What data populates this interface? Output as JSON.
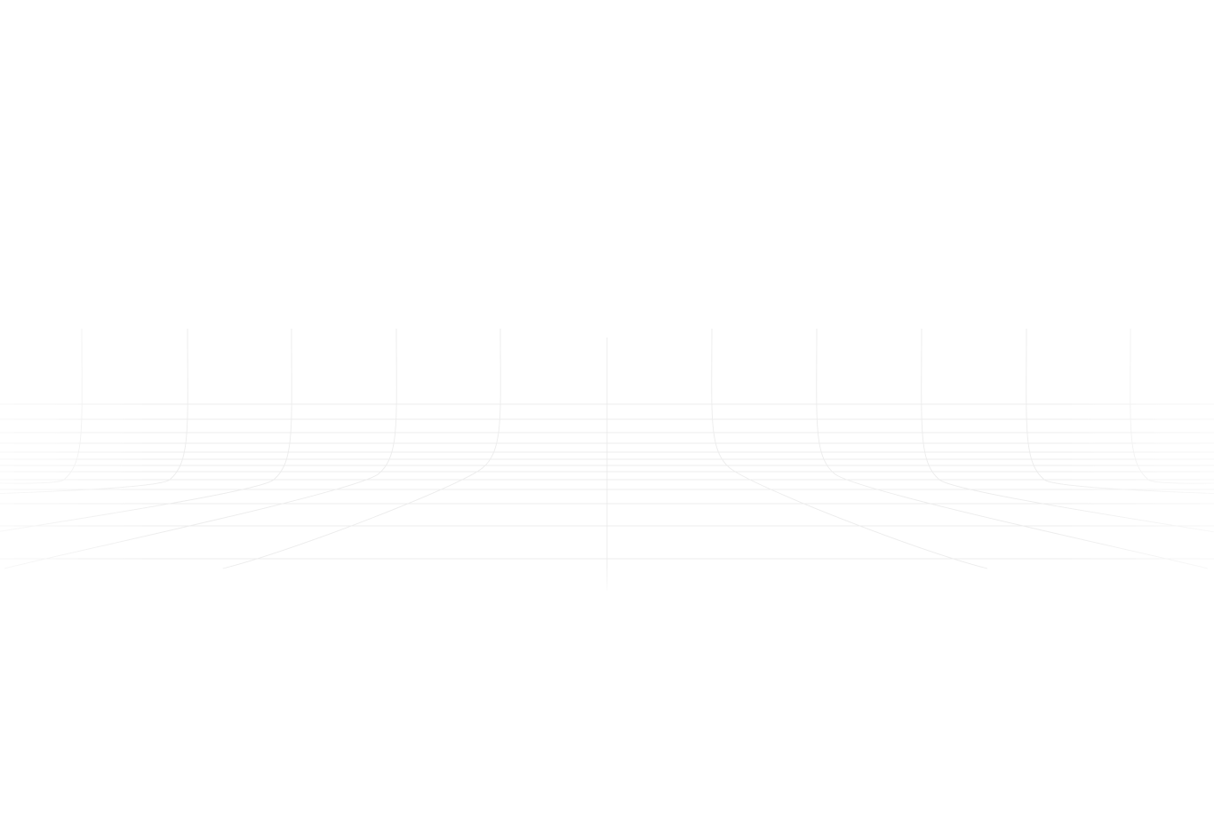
{
  "page": {
    "background_color": "#ffffff"
  },
  "grid": {
    "line_color": "#e6e6e6",
    "vertical_line_color": "#ececec",
    "style": "perspective-floor-grid"
  }
}
